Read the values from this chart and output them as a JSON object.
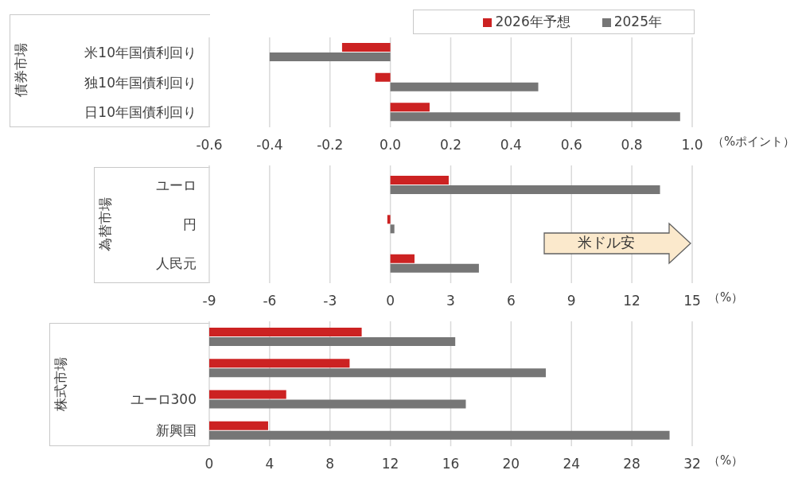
{
  "chart_data": [
    {
      "type": "bar",
      "orientation": "horizontal",
      "ylabel": "債券市場",
      "xlabel": "（%ポイント）",
      "categories": [
        "米10年国債利回り",
        "独10年国債利回り",
        "日10年国債利回り"
      ],
      "series": [
        {
          "name": "2026年予想",
          "color": "#cc2222",
          "values": [
            -0.16,
            -0.05,
            0.13
          ]
        },
        {
          "name": "2025年",
          "color": "#767676",
          "values": [
            -0.4,
            0.49,
            0.96
          ]
        }
      ],
      "xlim": [
        -0.6,
        1.0
      ],
      "xticks": [
        {
          "value": -0.6,
          "label": "-0.6"
        },
        {
          "value": -0.4,
          "label": "-0.4"
        },
        {
          "value": -0.2,
          "label": "-0.2"
        },
        {
          "value": 0,
          "label": "0.0"
        },
        {
          "value": 0.2,
          "label": "0.2"
        },
        {
          "value": 0.4,
          "label": "0.4"
        },
        {
          "value": 0.6,
          "label": "0.6"
        },
        {
          "value": 0.8,
          "label": "0.8"
        },
        {
          "value": 1.0,
          "label": "1.0"
        }
      ],
      "grid": "x",
      "legend": "top right"
    },
    {
      "type": "bar",
      "orientation": "horizontal",
      "ylabel": "為替市場",
      "xlabel": "（%）",
      "categories": [
        "ユーロ",
        "円",
        "人民元"
      ],
      "series": [
        {
          "color": "#cc2222",
          "values": [
            2.9,
            -0.15,
            1.2
          ]
        },
        {
          "color": "#767676",
          "values": [
            13.4,
            0.2,
            4.4
          ]
        }
      ],
      "xlim": [
        -9,
        15
      ],
      "xticks": [
        -9,
        -6,
        -3,
        0,
        3,
        6,
        9,
        12,
        15
      ],
      "grid": "x",
      "annotations": [
        "米ドル安"
      ]
    },
    {
      "type": "bar",
      "orientation": "horizontal",
      "ylabel": "株式市場",
      "xlabel": "（%）",
      "categories": [
        null,
        null,
        "ユーロ300",
        "新興国"
      ],
      "series": [
        {
          "color": "#cc2222",
          "values": [
            10.1,
            9.3,
            5.1,
            3.9
          ]
        },
        {
          "color": "#767676",
          "values": [
            16.3,
            22.3,
            17.0,
            30.5
          ]
        }
      ],
      "xlim": [
        0,
        32
      ],
      "xticks": [
        0,
        4,
        8,
        12,
        16,
        20,
        24,
        28,
        32
      ],
      "grid": "x"
    }
  ]
}
